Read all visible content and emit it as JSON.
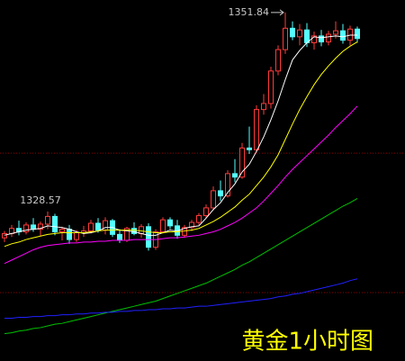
{
  "chart_data": {
    "type": "candlestick",
    "title": "黄金1小时图",
    "ylim": [
      1311.1,
      1353.3
    ],
    "yticks": [
      1319.1,
      1335.4
    ],
    "grid": true,
    "up_color": "#ff3b3b",
    "down_color": "#54ffff",
    "open": [
      1325.5,
      1326.0,
      1326.6,
      1326.2,
      1327.0,
      1326.5,
      1327.1,
      1328.0,
      1326.2,
      1326.5,
      1325.3,
      1326.1,
      1326.3,
      1327.2,
      1326.4,
      1327.5,
      1325.9,
      1325.2,
      1326.6,
      1326.0,
      1326.8,
      1324.4,
      1326.2,
      1327.6,
      1326.9,
      1325.8,
      1326.7,
      1327.3,
      1328.1,
      1329.0,
      1331.0,
      1330.4,
      1333.0,
      1332.6,
      1336.0,
      1335.8,
      1340.5,
      1341.2,
      1345.0,
      1347.5,
      1350.0,
      1349.0,
      1349.8,
      1348.3,
      1349.1,
      1348.4,
      1349.3,
      1349.7,
      1348.6,
      1349.9
    ],
    "high": [
      1326.3,
      1327.0,
      1327.5,
      1327.3,
      1327.8,
      1327.4,
      1328.57,
      1328.3,
      1326.8,
      1327.0,
      1326.4,
      1326.9,
      1327.6,
      1327.8,
      1327.9,
      1327.7,
      1326.5,
      1326.8,
      1327.3,
      1327.1,
      1327.2,
      1326.5,
      1327.9,
      1327.9,
      1327.6,
      1327.0,
      1327.6,
      1328.4,
      1329.4,
      1331.5,
      1332.2,
      1333.4,
      1334.7,
      1336.6,
      1338.5,
      1341.0,
      1342.3,
      1345.5,
      1348.0,
      1351.84,
      1350.8,
      1350.5,
      1350.6,
      1349.6,
      1349.8,
      1349.7,
      1350.8,
      1350.5,
      1350.3,
      1350.2
    ],
    "low": [
      1325.0,
      1325.6,
      1325.8,
      1325.9,
      1326.2,
      1325.7,
      1326.5,
      1325.8,
      1325.2,
      1324.8,
      1325.0,
      1325.6,
      1326.0,
      1326.1,
      1325.9,
      1325.6,
      1324.9,
      1325.0,
      1325.8,
      1325.5,
      1324.0,
      1324.1,
      1326.0,
      1326.5,
      1325.4,
      1325.5,
      1326.3,
      1327.0,
      1327.8,
      1328.7,
      1329.8,
      1330.2,
      1332.0,
      1332.4,
      1335.3,
      1335.5,
      1339.9,
      1340.6,
      1344.5,
      1347.0,
      1348.6,
      1348.0,
      1347.8,
      1347.5,
      1347.9,
      1348.0,
      1348.8,
      1348.2,
      1348.0,
      1348.3
    ],
    "close": [
      1326.0,
      1326.6,
      1326.2,
      1327.0,
      1326.5,
      1327.1,
      1328.0,
      1326.2,
      1326.5,
      1325.3,
      1326.1,
      1326.3,
      1327.2,
      1326.4,
      1327.5,
      1325.9,
      1325.2,
      1326.6,
      1326.0,
      1326.8,
      1324.4,
      1326.2,
      1327.6,
      1326.9,
      1325.8,
      1326.7,
      1327.3,
      1328.1,
      1329.0,
      1331.0,
      1330.4,
      1333.0,
      1332.6,
      1336.0,
      1335.8,
      1340.5,
      1341.2,
      1345.0,
      1347.5,
      1350.0,
      1349.0,
      1349.8,
      1348.3,
      1349.1,
      1348.4,
      1349.3,
      1349.7,
      1348.6,
      1349.9,
      1348.8
    ],
    "series": [
      {
        "color": "#ffffff",
        "values": [
          1325.8,
          1326.0,
          1326.2,
          1326.4,
          1326.5,
          1326.6,
          1326.9,
          1326.8,
          1326.7,
          1326.5,
          1326.2,
          1326.0,
          1326.1,
          1326.3,
          1326.7,
          1326.7,
          1326.4,
          1326.3,
          1326.2,
          1326.0,
          1325.8,
          1325.8,
          1326.1,
          1326.4,
          1326.3,
          1326.6,
          1326.8,
          1326.9,
          1327.8,
          1328.8,
          1329.6,
          1330.8,
          1331.8,
          1333.2,
          1334.1,
          1335.6,
          1337.3,
          1339.3,
          1341.5,
          1344.0,
          1346.3,
          1347.4,
          1348.3,
          1349.0,
          1348.9,
          1349.0,
          1349.1,
          1349.0,
          1349.2,
          1349.2
        ]
      },
      {
        "color": "#ffff00",
        "values": [
          1324.5,
          1324.8,
          1325.0,
          1325.3,
          1325.5,
          1325.7,
          1325.9,
          1326.0,
          1326.1,
          1326.1,
          1326.1,
          1326.1,
          1326.2,
          1326.3,
          1326.4,
          1326.4,
          1326.4,
          1326.4,
          1326.4,
          1326.3,
          1326.2,
          1326.1,
          1326.1,
          1326.2,
          1326.2,
          1326.3,
          1326.4,
          1326.6,
          1327.0,
          1327.4,
          1327.9,
          1328.5,
          1329.1,
          1329.9,
          1330.6,
          1331.6,
          1332.6,
          1333.8,
          1335.2,
          1337.0,
          1338.8,
          1340.5,
          1342.0,
          1343.4,
          1344.6,
          1345.6,
          1346.5,
          1347.3,
          1347.9,
          1348.4
        ]
      },
      {
        "color": "#ff00ff",
        "values": [
          1322.5,
          1322.9,
          1323.3,
          1323.7,
          1324.1,
          1324.4,
          1324.6,
          1324.7,
          1324.8,
          1324.9,
          1324.9,
          1325.0,
          1325.0,
          1325.1,
          1325.1,
          1325.2,
          1325.2,
          1325.2,
          1325.3,
          1325.3,
          1325.3,
          1325.3,
          1325.4,
          1325.5,
          1325.5,
          1325.6,
          1325.7,
          1325.8,
          1326.0,
          1326.2,
          1326.5,
          1326.9,
          1327.3,
          1327.8,
          1328.4,
          1329.0,
          1329.8,
          1330.7,
          1331.6,
          1332.6,
          1333.5,
          1334.3,
          1335.1,
          1335.9,
          1336.7,
          1337.5,
          1338.4,
          1339.2,
          1340.0,
          1340.9
        ]
      },
      {
        "color": "#00c000",
        "values": [
          1314.3,
          1314.4,
          1314.6,
          1314.7,
          1314.9,
          1315.0,
          1315.2,
          1315.4,
          1315.5,
          1315.7,
          1315.9,
          1316.1,
          1316.3,
          1316.5,
          1316.7,
          1316.9,
          1317.1,
          1317.3,
          1317.5,
          1317.7,
          1317.9,
          1318.1,
          1318.4,
          1318.7,
          1319.0,
          1319.3,
          1319.6,
          1319.9,
          1320.2,
          1320.6,
          1321.0,
          1321.4,
          1321.8,
          1322.3,
          1322.7,
          1323.2,
          1323.7,
          1324.2,
          1324.7,
          1325.2,
          1325.7,
          1326.2,
          1326.7,
          1327.2,
          1327.7,
          1328.2,
          1328.7,
          1329.2,
          1329.6,
          1330.1
        ]
      },
      {
        "color": "#2020ff",
        "values": [
          1316.1,
          1316.1,
          1316.2,
          1316.2,
          1316.3,
          1316.3,
          1316.4,
          1316.4,
          1316.5,
          1316.5,
          1316.6,
          1316.6,
          1316.7,
          1316.7,
          1316.8,
          1316.8,
          1316.9,
          1316.9,
          1317.0,
          1317.0,
          1317.1,
          1317.1,
          1317.2,
          1317.2,
          1317.3,
          1317.3,
          1317.4,
          1317.5,
          1317.5,
          1317.6,
          1317.7,
          1317.8,
          1317.9,
          1318.0,
          1318.1,
          1318.2,
          1318.3,
          1318.4,
          1318.6,
          1318.7,
          1318.9,
          1319.0,
          1319.2,
          1319.4,
          1319.6,
          1319.8,
          1320.0,
          1320.2,
          1320.5,
          1320.7
        ]
      }
    ],
    "annotations": [
      {
        "value": 1351.84,
        "label": "1351.84"
      },
      {
        "value": 1328.57,
        "label": "1328.57"
      }
    ]
  }
}
